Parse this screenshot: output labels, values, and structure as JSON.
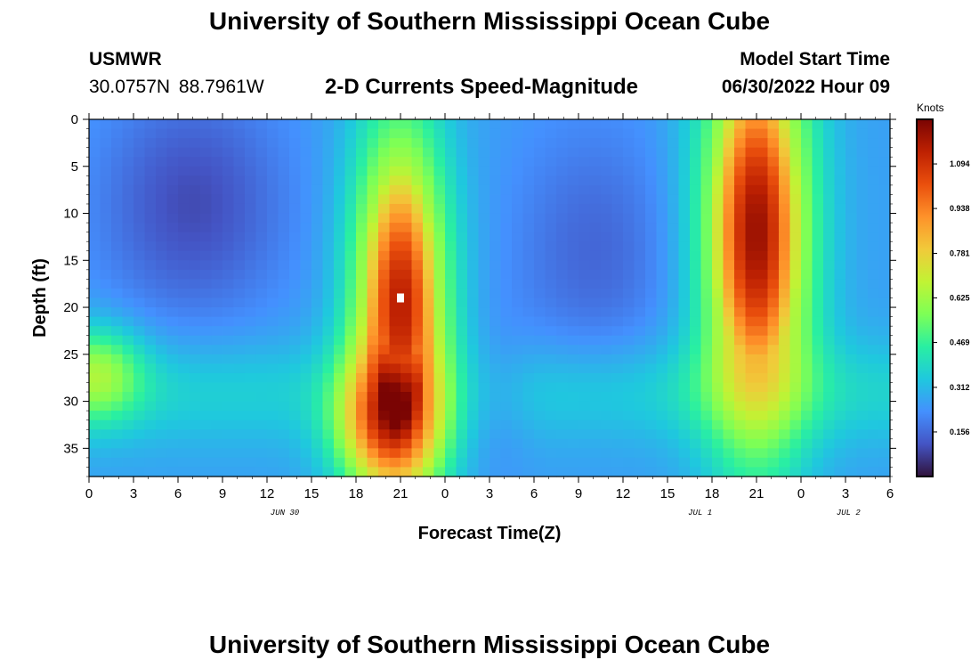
{
  "header": {
    "title": "University of Southern Mississippi Ocean Cube",
    "station_name": "USMWR",
    "station_coords": "30.0757N  88.7961W",
    "subtitle": "2-D Currents Speed-Magnitude",
    "model_start_label": "Model Start Time",
    "model_start_time": "06/30/2022 Hour 09"
  },
  "footer": {
    "title": "University of Southern Mississippi Ocean Cube"
  },
  "chart_data": {
    "type": "heatmap",
    "xlabel": "Forecast Time(Z)",
    "ylabel": "Depth (ft)",
    "x_ticks": [
      "0",
      "3",
      "6",
      "9",
      "12",
      "15",
      "18",
      "21",
      "0",
      "3",
      "6",
      "9",
      "12",
      "15",
      "18",
      "21",
      "0",
      "3",
      "6"
    ],
    "date_labels": [
      "JUN 30",
      "JUL 1",
      "JUL 2"
    ],
    "y_ticks": [
      "0",
      "5",
      "10",
      "15",
      "20",
      "25",
      "30",
      "35"
    ],
    "xlim_hours": [
      0,
      54
    ],
    "ylim_ft": [
      0,
      38
    ],
    "colorbar": {
      "units": "Knots",
      "ticks": [
        "1.094",
        "0.938",
        "0.781",
        "0.625",
        "0.469",
        "0.312",
        "0.156"
      ],
      "range": [
        0,
        1.25
      ],
      "colors": [
        "#30123b",
        "#4454c4",
        "#4490fe",
        "#1fc8de",
        "#29efa2",
        "#7dff56",
        "#c1f334",
        "#f1ca3a",
        "#fe922a",
        "#ea4f0d",
        "#be2102",
        "#7a0403"
      ]
    },
    "marker": {
      "hour": 21,
      "depth_ft": 19,
      "color": "#ffffff"
    },
    "field_features": [
      {
        "hour": 21,
        "depth_ft": 20,
        "speed": 1.15,
        "sigma_hours": 2.3,
        "sigma_ft": 14
      },
      {
        "hour": 20,
        "depth_ft": 32,
        "speed": 0.85,
        "sigma_hours": 2.5,
        "sigma_ft": 5
      },
      {
        "hour": 45,
        "depth_ft": 12,
        "speed": 1.2,
        "sigma_hours": 2.6,
        "sigma_ft": 16
      },
      {
        "hour": 0.5,
        "depth_ft": 27,
        "speed": 0.5,
        "sigma_hours": 2.2,
        "sigma_ft": 3.5
      },
      {
        "hour": 11,
        "depth_ft": 30,
        "speed": 0.15,
        "sigma_hours": 2.5,
        "sigma_ft": 3
      }
    ],
    "background_speed": {
      "upper_left": 0.1,
      "middle": 0.26,
      "lower_band": 0.37,
      "right_edge": 0.15
    }
  }
}
